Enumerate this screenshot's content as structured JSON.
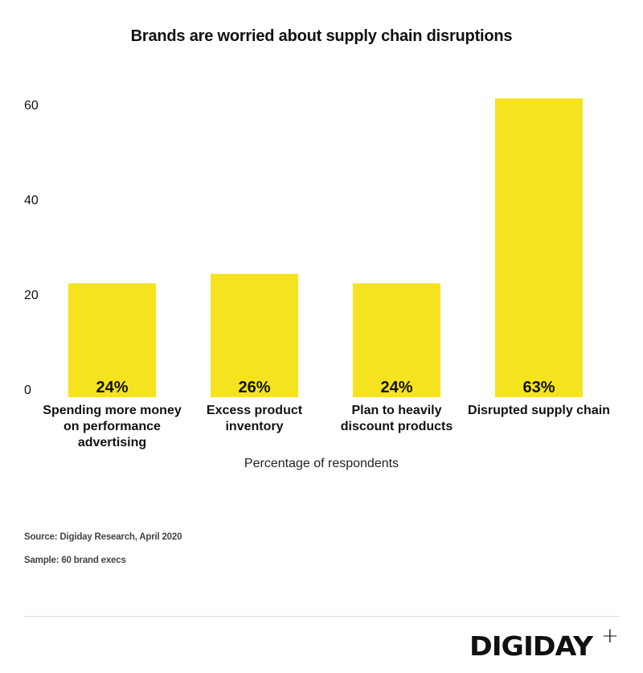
{
  "chart_data": {
    "type": "bar",
    "title": "Brands are worried about supply chain disruptions",
    "categories": [
      [
        "Spending more money",
        "on performance",
        "advertising"
      ],
      [
        "Excess product",
        "inventory"
      ],
      [
        "Plan to heavily",
        "discount products"
      ],
      [
        "Disrupted supply chain"
      ]
    ],
    "values": [
      24,
      26,
      24,
      63
    ],
    "data_labels": [
      "24%",
      "26%",
      "24%",
      "63%"
    ],
    "xlabel": "Percentage of respondents",
    "ylabel": "",
    "yticks": [
      0,
      20,
      40,
      60
    ],
    "ylim": [
      0,
      63
    ],
    "grid": false,
    "bar_color": "#f5e31f"
  },
  "footer": {
    "source": "Source: Digiday Research, April 2020",
    "sample": "Sample: 60 brand execs",
    "logo_text": "DIGIDAY",
    "logo_plus": "+"
  }
}
